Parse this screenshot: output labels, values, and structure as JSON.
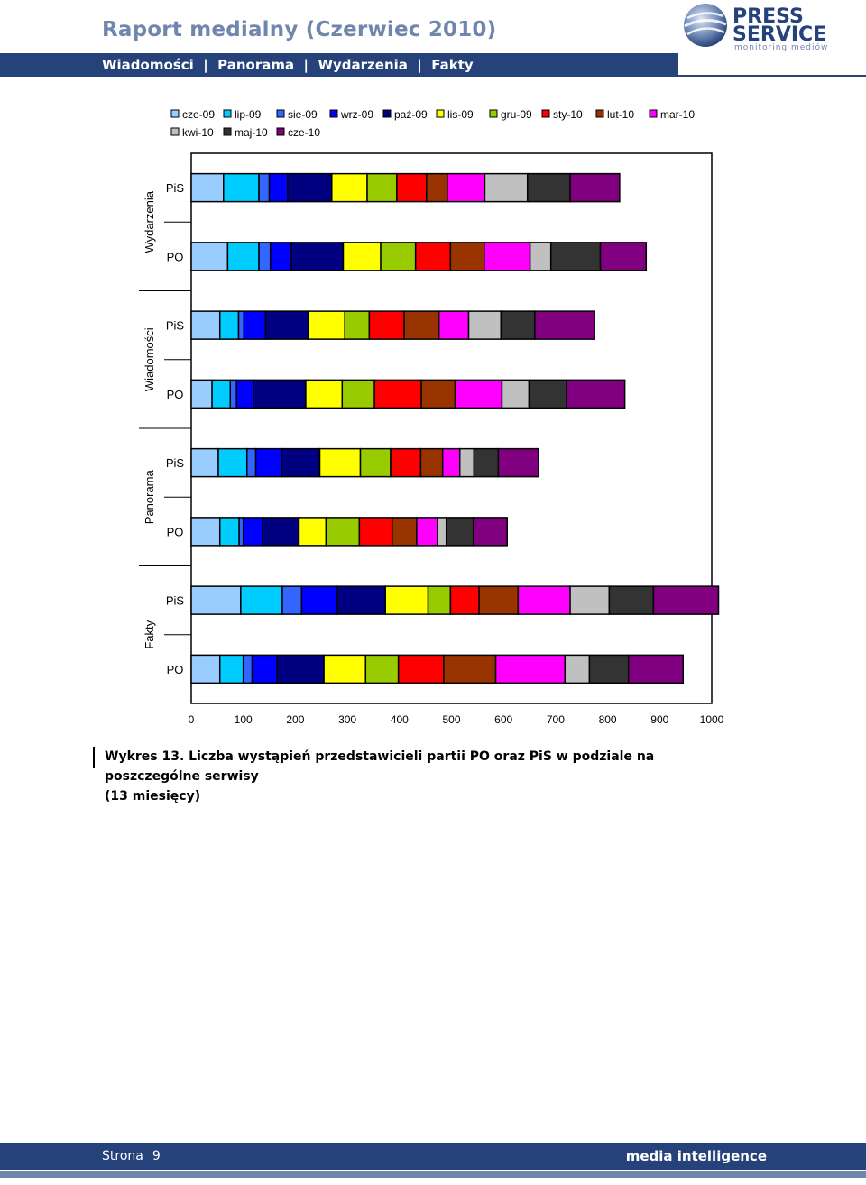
{
  "header": {
    "title": "Raport medialny (Czerwiec 2010)",
    "nav": [
      "Wiadomości",
      "Panorama",
      "Wydarzenia",
      "Fakty"
    ],
    "nav_separator": "|",
    "logo": {
      "line1": "PRESS",
      "line2": "SERVICE",
      "tagline": "monitoring mediów"
    }
  },
  "chart_data": {
    "type": "bar",
    "orientation": "horizontal",
    "stacked": true,
    "xlim": [
      0,
      1000
    ],
    "xticks": [
      0,
      100,
      200,
      300,
      400,
      500,
      600,
      700,
      800,
      900,
      1000
    ],
    "grid": false,
    "legend_position": "top",
    "groups": [
      "Wydarzenia",
      "Wiadomości",
      "Panorama",
      "Fakty"
    ],
    "categories": [
      "PiS",
      "PO"
    ],
    "series": [
      {
        "name": "cze-09",
        "color": "#99ccff",
        "values": {
          "Wydarzenia": [
            62,
            70
          ],
          "Wiadomości": [
            55,
            40
          ],
          "Panorama": [
            52,
            55
          ],
          "Fakty": [
            95,
            55
          ]
        }
      },
      {
        "name": "lip-09",
        "color": "#00ccff",
        "values": {
          "Wydarzenia": [
            68,
            60
          ],
          "Wiadomości": [
            36,
            35
          ],
          "Panorama": [
            55,
            37
          ],
          "Fakty": [
            80,
            45
          ]
        }
      },
      {
        "name": "sie-09",
        "color": "#3366ff",
        "values": {
          "Wydarzenia": [
            20,
            22
          ],
          "Wiadomości": [
            10,
            12
          ],
          "Panorama": [
            17,
            8
          ],
          "Fakty": [
            37,
            17
          ]
        }
      },
      {
        "name": "wrz-09",
        "color": "#0000ff",
        "values": {
          "Wydarzenia": [
            35,
            40
          ],
          "Wiadomości": [
            42,
            33
          ],
          "Panorama": [
            50,
            37
          ],
          "Fakty": [
            68,
            48
          ]
        }
      },
      {
        "name": "paź-09",
        "color": "#000080",
        "values": {
          "Wydarzenia": [
            85,
            100
          ],
          "Wiadomości": [
            82,
            100
          ],
          "Panorama": [
            73,
            70
          ],
          "Fakty": [
            93,
            90
          ]
        }
      },
      {
        "name": "lis-09",
        "color": "#ffff00",
        "values": {
          "Wydarzenia": [
            68,
            72
          ],
          "Wiadomości": [
            70,
            70
          ],
          "Panorama": [
            78,
            52
          ],
          "Fakty": [
            82,
            80
          ]
        }
      },
      {
        "name": "gru-09",
        "color": "#99cc00",
        "values": {
          "Wydarzenia": [
            57,
            67
          ],
          "Wiadomości": [
            47,
            62
          ],
          "Panorama": [
            58,
            64
          ],
          "Fakty": [
            43,
            63
          ]
        }
      },
      {
        "name": "sty-10",
        "color": "#ff0000",
        "values": {
          "Wydarzenia": [
            57,
            67
          ],
          "Wiadomości": [
            67,
            90
          ],
          "Panorama": [
            58,
            63
          ],
          "Fakty": [
            55,
            87
          ]
        }
      },
      {
        "name": "lut-10",
        "color": "#993300",
        "values": {
          "Wydarzenia": [
            40,
            65
          ],
          "Wiadomości": [
            67,
            65
          ],
          "Panorama": [
            42,
            47
          ],
          "Fakty": [
            75,
            100
          ]
        }
      },
      {
        "name": "mar-10",
        "color": "#ff00ff",
        "values": {
          "Wydarzenia": [
            72,
            88
          ],
          "Wiadomości": [
            57,
            90
          ],
          "Panorama": [
            33,
            40
          ],
          "Fakty": [
            100,
            133
          ]
        }
      },
      {
        "name": "kwi-10",
        "color": "#c0c0c0",
        "values": {
          "Wydarzenia": [
            82,
            40
          ],
          "Wiadomości": [
            62,
            52
          ],
          "Panorama": [
            27,
            17
          ],
          "Fakty": [
            75,
            47
          ]
        }
      },
      {
        "name": "maj-10",
        "color": "#333333",
        "values": {
          "Wydarzenia": [
            82,
            95
          ],
          "Wiadomości": [
            65,
            72
          ],
          "Panorama": [
            47,
            52
          ],
          "Fakty": [
            85,
            75
          ]
        }
      },
      {
        "name": "cze-10",
        "color": "#800080",
        "values": {
          "Wydarzenia": [
            95,
            88
          ],
          "Wiadomości": [
            115,
            112
          ],
          "Panorama": [
            77,
            65
          ],
          "Fakty": [
            125,
            105
          ]
        }
      }
    ]
  },
  "caption": {
    "line1": "Wykres 13. Liczba wystąpień przedstawicieli partii PO oraz PiS w podziale na poszczególne serwisy",
    "line2": "(13 miesięcy)"
  },
  "footer": {
    "page_label": "Strona",
    "page_number": "9",
    "tagline": "media intelligence"
  }
}
